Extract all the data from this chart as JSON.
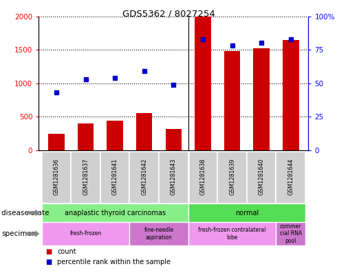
{
  "title": "GDS5362 / 8027254",
  "samples": [
    "GSM1281636",
    "GSM1281637",
    "GSM1281641",
    "GSM1281642",
    "GSM1281643",
    "GSM1281638",
    "GSM1281639",
    "GSM1281640",
    "GSM1281644"
  ],
  "counts": [
    250,
    400,
    445,
    560,
    320,
    2000,
    1480,
    1520,
    1650
  ],
  "percentiles": [
    43,
    53,
    54,
    59,
    49,
    83,
    78,
    80,
    83
  ],
  "ylim_left": [
    0,
    2000
  ],
  "ylim_right": [
    0,
    100
  ],
  "yticks_left": [
    0,
    500,
    1000,
    1500,
    2000
  ],
  "yticks_right": [
    0,
    25,
    50,
    75,
    100
  ],
  "ytick_labels_left": [
    "0",
    "500",
    "1000",
    "1500",
    "2000"
  ],
  "ytick_labels_right": [
    "0",
    "25",
    "50",
    "75",
    "100%"
  ],
  "bar_color": "#cc0000",
  "dot_color": "#0000cc",
  "disease_state_groups": [
    {
      "label": "anaplastic thyroid carcinomas",
      "start": 0,
      "end": 5,
      "color": "#88ee88"
    },
    {
      "label": "normal",
      "start": 5,
      "end": 9,
      "color": "#55dd55"
    }
  ],
  "specimen_groups": [
    {
      "label": "fresh-frozen",
      "start": 0,
      "end": 3,
      "color": "#ee99ee"
    },
    {
      "label": "fine-needle\naspiration",
      "start": 3,
      "end": 5,
      "color": "#cc77cc"
    },
    {
      "label": "fresh-frozen contralateral\nlobe",
      "start": 5,
      "end": 8,
      "color": "#ee99ee"
    },
    {
      "label": "commer\ncial RNA\npool",
      "start": 8,
      "end": 9,
      "color": "#cc77cc"
    }
  ],
  "legend_count_label": "count",
  "legend_pct_label": "percentile rank within the sample"
}
